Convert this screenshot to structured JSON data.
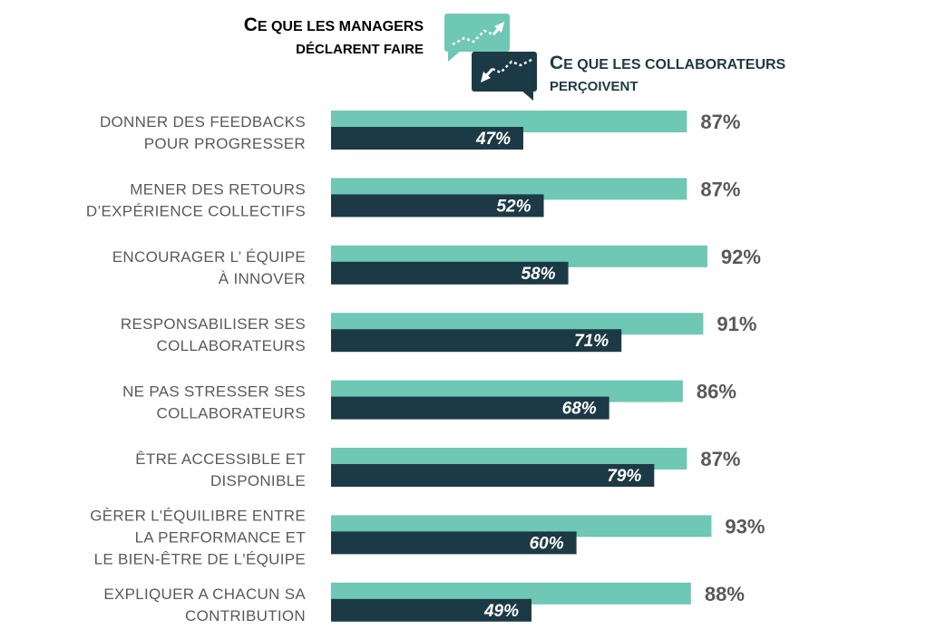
{
  "chart_data": {
    "type": "bar",
    "orientation": "horizontal",
    "xlim": [
      0,
      100
    ],
    "value_suffix": "%",
    "colors": {
      "managers": "#6fc7b5",
      "collaborateurs": "#1c3a45"
    },
    "legend": {
      "managers": {
        "line1_first": "C",
        "line1_rest": "E QUE LES MANAGERS",
        "line2": "DÉCLARENT FAIRE"
      },
      "collaborateurs": {
        "line1_first": "C",
        "line1_rest": "E QUE LES COLLABORATEURS",
        "line2": "PERÇOIVENT"
      }
    },
    "categories": [
      [
        "DONNER DES FEEDBACKS",
        "POUR PROGRESSER"
      ],
      [
        "MENER DES RETOURS",
        "D’EXPÉRIENCE COLLECTIFS"
      ],
      [
        "ENCOURAGER L’ ÉQUIPE",
        "À INNOVER"
      ],
      [
        "RESPONSABILISER SES",
        "COLLABORATEURS"
      ],
      [
        "NE PAS STRESSER SES",
        "COLLABORATEURS"
      ],
      [
        "ÊTRE ACCESSIBLE ET",
        "DISPONIBLE"
      ],
      [
        "GÈRER L'ÉQUILIBRE ENTRE",
        "LA PERFORMANCE ET",
        "LE BIEN-ÊTRE DE L'ÉQUIPE"
      ],
      [
        "EXPLIQUER A CHACUN SA",
        "CONTRIBUTION"
      ]
    ],
    "series": [
      {
        "values": [
          87,
          87,
          92,
          91,
          86,
          87,
          93,
          88
        ]
      },
      {
        "values": [
          47,
          52,
          58,
          71,
          68,
          79,
          60,
          49
        ]
      }
    ]
  }
}
